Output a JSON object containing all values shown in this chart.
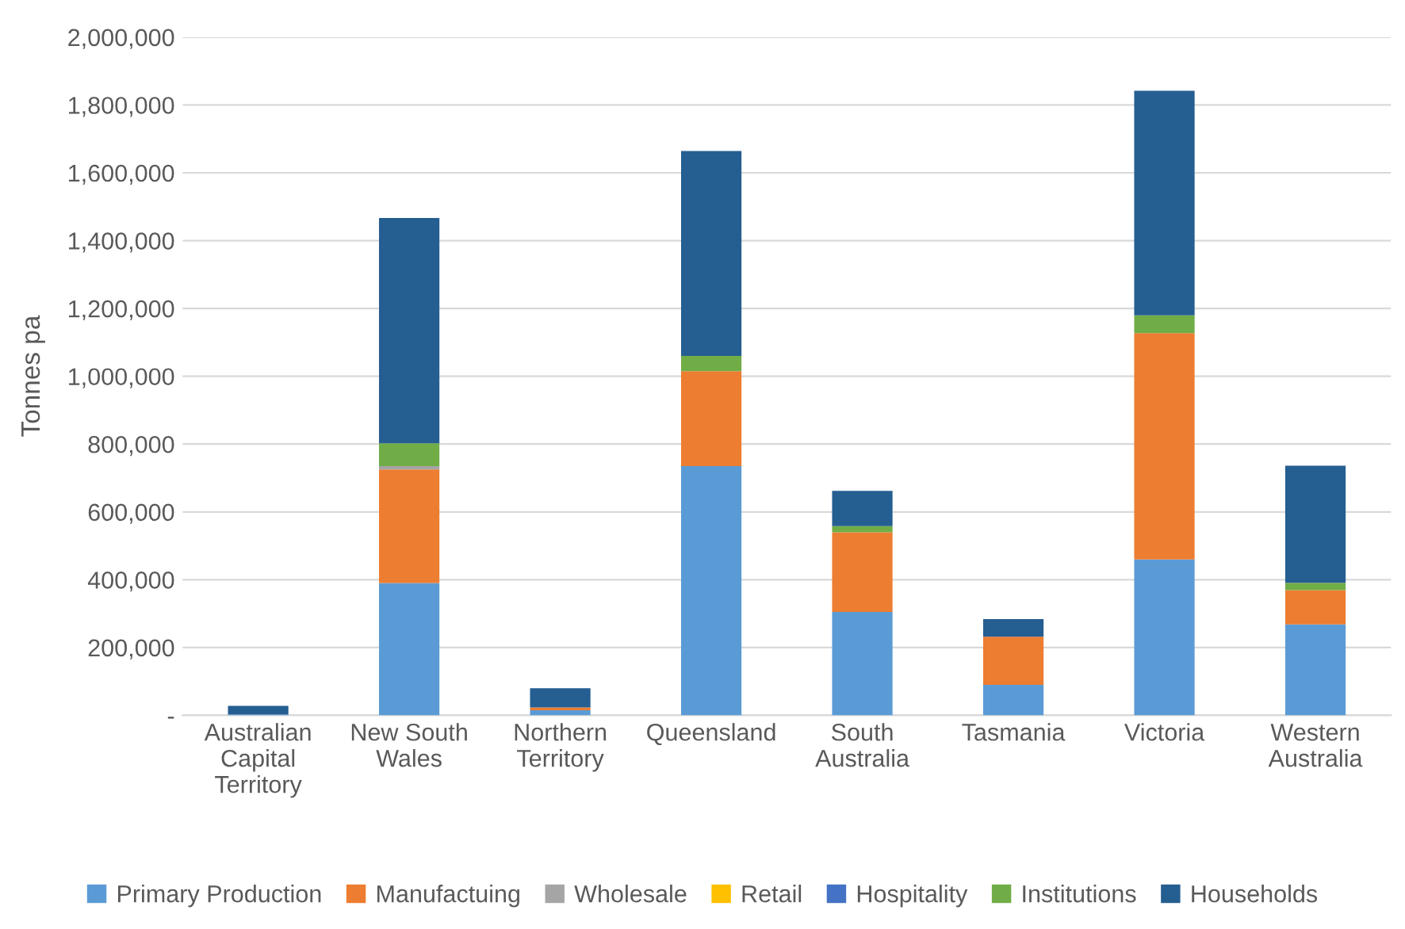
{
  "chart_data": {
    "type": "bar",
    "stacked": true,
    "ylabel": "Tonnes pa",
    "categories": [
      "Australian\nCapital\nTerritory",
      "New South\nWales",
      "Northern\nTerritory",
      "Queensland",
      "South\nAustralia",
      "Tasmania",
      "Victoria",
      "Western\nAustralia"
    ],
    "series": [
      {
        "name": "Primary Production",
        "color": "#5b9bd5",
        "values": [
          3000,
          390000,
          15000,
          735000,
          305000,
          90000,
          460000,
          268000
        ]
      },
      {
        "name": "Manufactuing",
        "color": "#ed7d31",
        "values": [
          0,
          335000,
          8000,
          280000,
          235000,
          142000,
          667000,
          101000
        ]
      },
      {
        "name": "Wholesale",
        "color": "#a5a5a5",
        "values": [
          0,
          10000,
          null,
          0,
          0,
          0,
          null,
          0
        ]
      },
      {
        "name": "Retail",
        "color": "#ffc000",
        "values": [
          0,
          0,
          0,
          0,
          0,
          0,
          0,
          0
        ]
      },
      {
        "name": "Hospitality",
        "color": "#4472c4",
        "values": [
          0,
          0,
          0,
          0,
          0,
          0,
          0,
          0
        ]
      },
      {
        "name": "Institutions",
        "color": "#70ad47",
        "values": [
          0,
          67000,
          0,
          45000,
          18000,
          0,
          53000,
          22000
        ]
      },
      {
        "name": "Households",
        "color": "#255e91",
        "values": [
          25000,
          665000,
          57000,
          604000,
          104000,
          52000,
          662000,
          345000
        ]
      }
    ],
    "ylim": [
      0,
      2000000
    ],
    "yticks": [
      {
        "value": 0,
        "label": "-"
      },
      {
        "value": 200000,
        "label": "200,000"
      },
      {
        "value": 400000,
        "label": "400,000"
      },
      {
        "value": 600000,
        "label": "600,000"
      },
      {
        "value": 800000,
        "label": "800,000"
      },
      {
        "value": 1000000,
        "label": "1,000,000"
      },
      {
        "value": 1200000,
        "label": "1,200,000"
      },
      {
        "value": 1400000,
        "label": "1,400,000"
      },
      {
        "value": 1600000,
        "label": "1,600,000"
      },
      {
        "value": 1800000,
        "label": "1,800,000"
      },
      {
        "value": 2000000,
        "label": "2,000,000"
      }
    ],
    "grid": "y",
    "legend": "bottom"
  }
}
